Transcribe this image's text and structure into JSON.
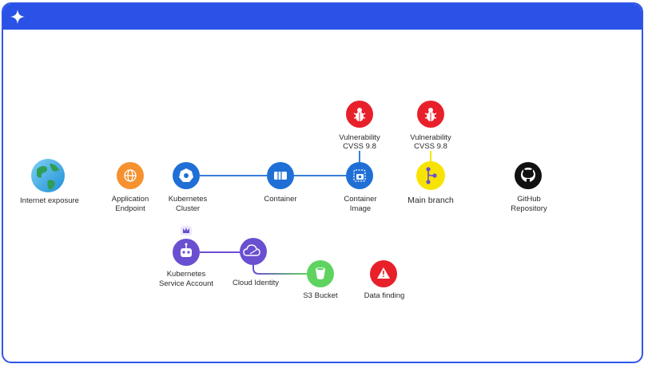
{
  "nodes": {
    "internet_exposure": "Internet exposure",
    "application_endpoint": [
      "Application",
      "Endpoint"
    ],
    "kubernetes_cluster": [
      "Kubernetes",
      "Cluster"
    ],
    "container": "Container",
    "container_image": [
      "Container",
      "Image"
    ],
    "main_branch": "Main branch",
    "github_repository": [
      "GitHub",
      "Repository"
    ],
    "kubernetes_service_account": [
      "Kubernetes",
      "Service Account"
    ],
    "cloud_identity": "Cloud Identity",
    "s3_bucket": "S3 Bucket",
    "data_finding": "Data finding"
  },
  "vulnerabilities": [
    {
      "title": "Vulnerability",
      "score": "CVSS 9.8"
    },
    {
      "title": "Vulnerability",
      "score": "CVSS 9.8"
    }
  ],
  "colors": {
    "frame_blue": "#2a52e6",
    "node_blue": "#1f6fd6",
    "node_orange": "#f5922f",
    "node_purple": "#6a4fd0",
    "node_green": "#5fd35f",
    "node_red": "#e8202a",
    "node_yellow": "#f6e400",
    "node_black": "#111111",
    "edge_blue": "#3b7ddd"
  },
  "icons": [
    "sparkle-icon",
    "globe-icon",
    "web-icon",
    "kubernetes-icon",
    "container-icon",
    "image-icon",
    "branch-icon",
    "github-icon",
    "robot-icon",
    "cloud-icon",
    "bucket-icon",
    "warning-icon",
    "bug-icon",
    "crown-icon"
  ]
}
